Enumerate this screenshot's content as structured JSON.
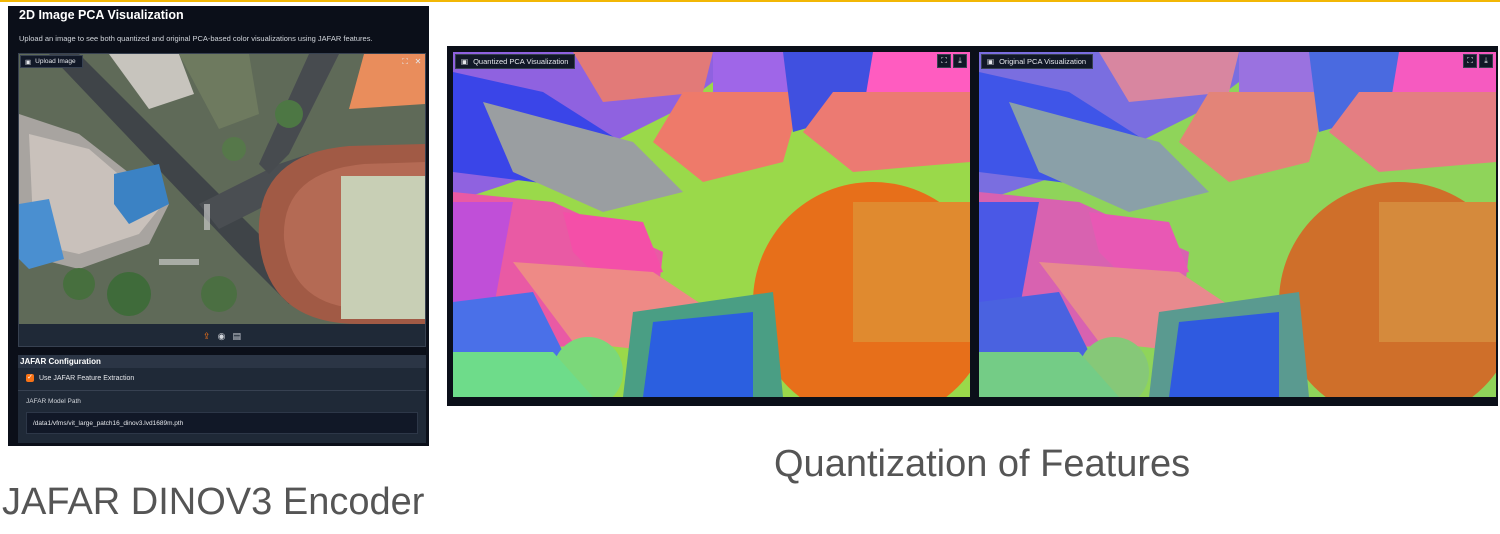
{
  "app": {
    "title": "2D Image PCA Visualization",
    "description": "Upload an image to see both quantized and original PCA-based color visualizations using JAFAR features.",
    "upload": {
      "label": "Upload Image",
      "icons": [
        "image-icon",
        "fullscreen-icon",
        "close-icon",
        "upload-icon",
        "webcam-icon",
        "clipboard-icon"
      ]
    },
    "config": {
      "title": "JAFAR Configuration",
      "checkbox_label": "Use JAFAR Feature Extraction",
      "checkbox_checked": true,
      "model_path_label": "JAFAR Model Path",
      "model_path_value": "/data1/vfms/vit_large_patch16_dinov3.lvd1689m.pth"
    },
    "accent_color": "#f97316"
  },
  "visualizations": {
    "quantized_label": "Quantized PCA Visualization",
    "original_label": "Original PCA Visualization",
    "icons": [
      "image-icon",
      "fullscreen-icon",
      "download-icon"
    ]
  },
  "captions": {
    "left": "JAFAR DINOV3 Encoder",
    "right": "Quantization of Features"
  },
  "colors": {
    "top_rule": "#f2b705",
    "panel_bg": "#0b0f19"
  }
}
